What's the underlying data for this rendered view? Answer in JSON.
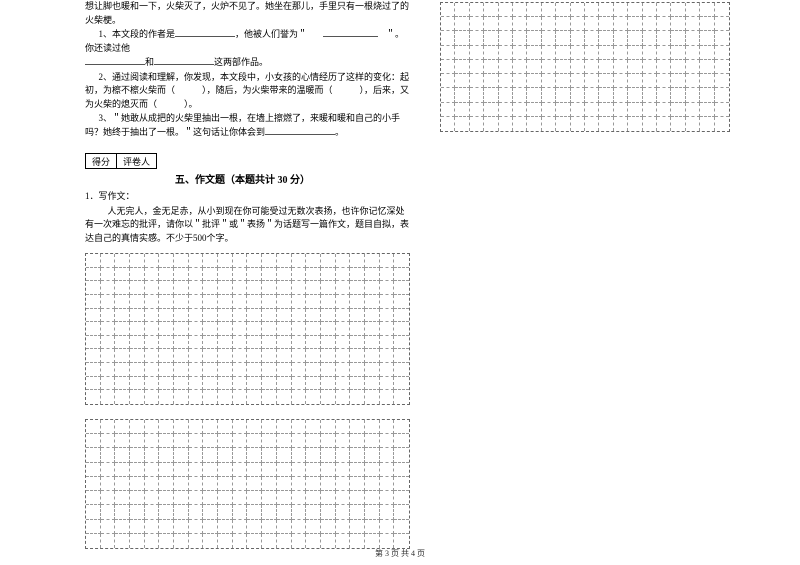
{
  "left": {
    "q_intro": "想让脚也暖和一下，火柴灭了，火炉不见了。她坐在那儿，手里只有一根烧过了的火柴梗。",
    "q1_a": "1、本文段的作者是",
    "q1_b": "，他被人们誉为＂",
    "q1_c": "＂。你还读过他",
    "q1_d": "和",
    "q1_e": "这两部作品。",
    "q2_a": "2、通过阅读和理解，你发现，本文段中，小女孩的心情经历了这样的变化：起初，为檫不檫火柴而（　　　），随后，为火柴带来的温暖而（　　　），后来，又为火柴的熄灭而（　　　）。",
    "q3_a": "3、＂她敢从成把的火柴里抽出一根，在墙上擦燃了，来暖和暖和自己的小手吗？她终于抽出了一根。＂这句话让你体会到",
    "q3_b": "。",
    "score_1": "得分",
    "score_2": "评卷人",
    "section5": "五、作文题（本题共计 30 分）",
    "w1": "1．写作文：",
    "w2": "人无完人，金无足赤，从小到现在你可能受过无数次表扬，也许你记忆深处有一次难忘的批评，请你以＂批评＂或＂表扬＂为话题写一篇作文，题目自拟，表达自己的真情实感。不少于500个字。"
  },
  "footer": "第 3 页  共 4 页",
  "grids": {
    "right_top": {
      "cols": 20,
      "rows": 9
    },
    "left_1": {
      "cols": 22,
      "rows": 11
    },
    "left_2": {
      "cols": 22,
      "rows": 9
    }
  }
}
